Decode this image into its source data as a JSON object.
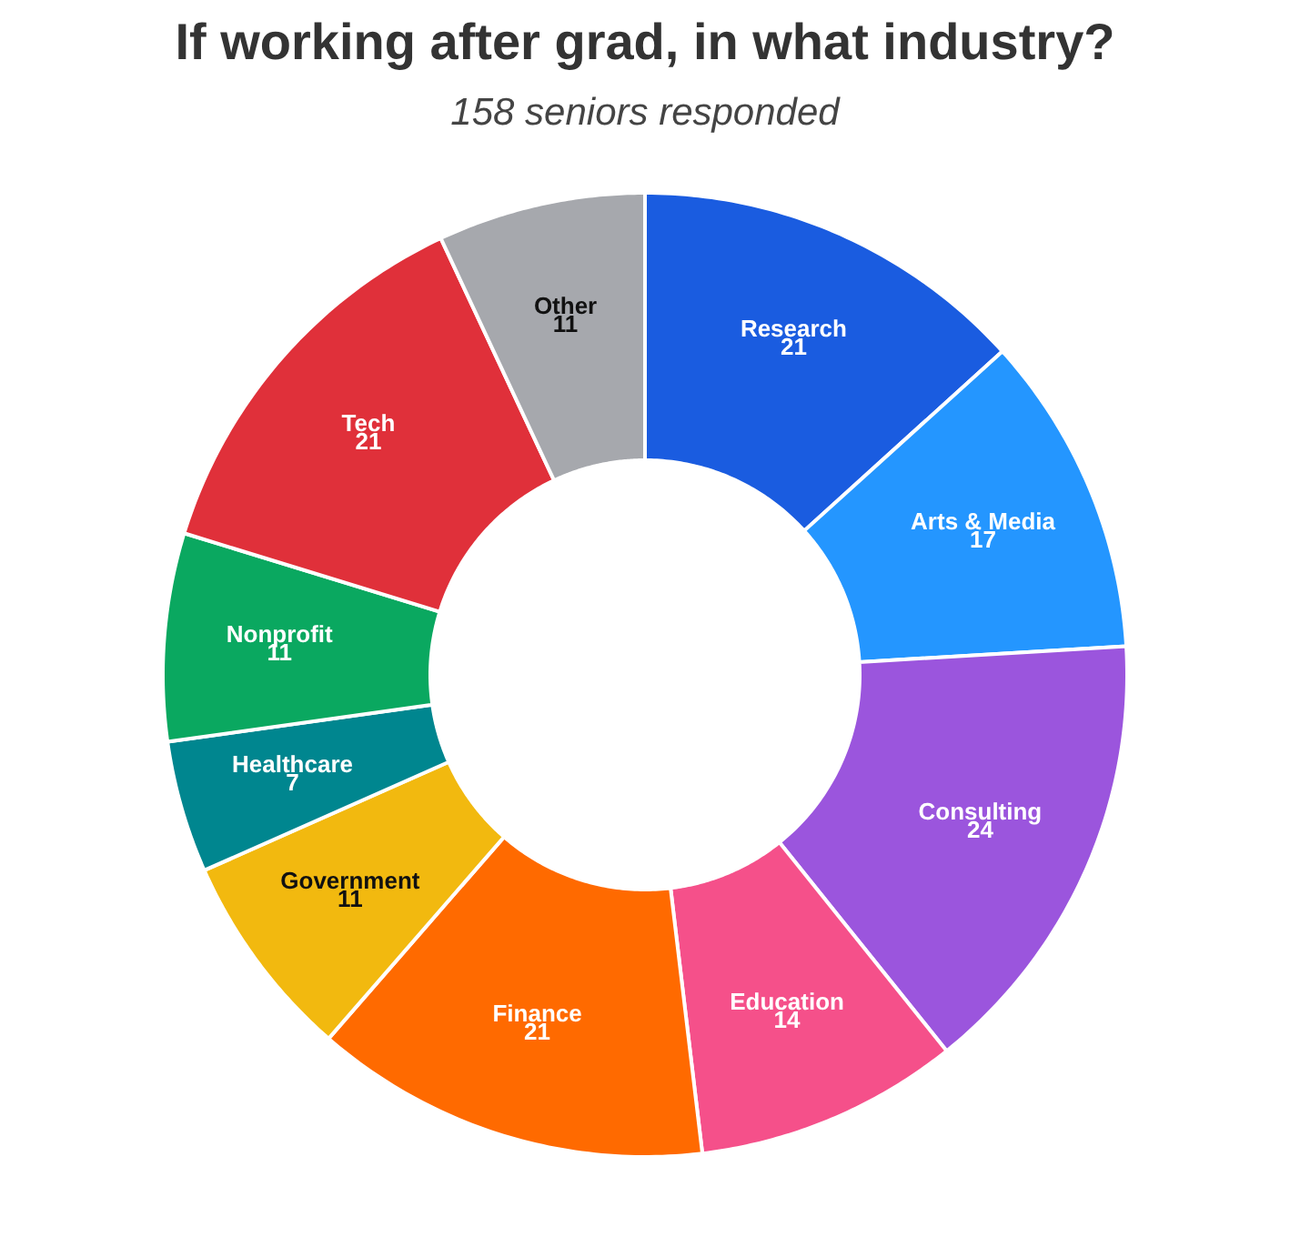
{
  "chart_data": {
    "type": "donut",
    "title": "If working after grad, in what industry?",
    "subtitle": "158 seniors responded",
    "categories": [
      "Research",
      "Arts & Media",
      "Consulting",
      "Education",
      "Finance",
      "Government",
      "Healthcare",
      "Nonprofit",
      "Tech",
      "Other"
    ],
    "values": [
      21,
      17,
      24,
      14,
      21,
      11,
      7,
      11,
      21,
      11
    ],
    "colors": [
      "#1a5ce0",
      "#2496ff",
      "#9b55dd",
      "#f5508a",
      "#ff6a00",
      "#f2b90f",
      "#00868f",
      "#0aa860",
      "#e0303a",
      "#a6a8ad"
    ],
    "data_labels": true
  }
}
